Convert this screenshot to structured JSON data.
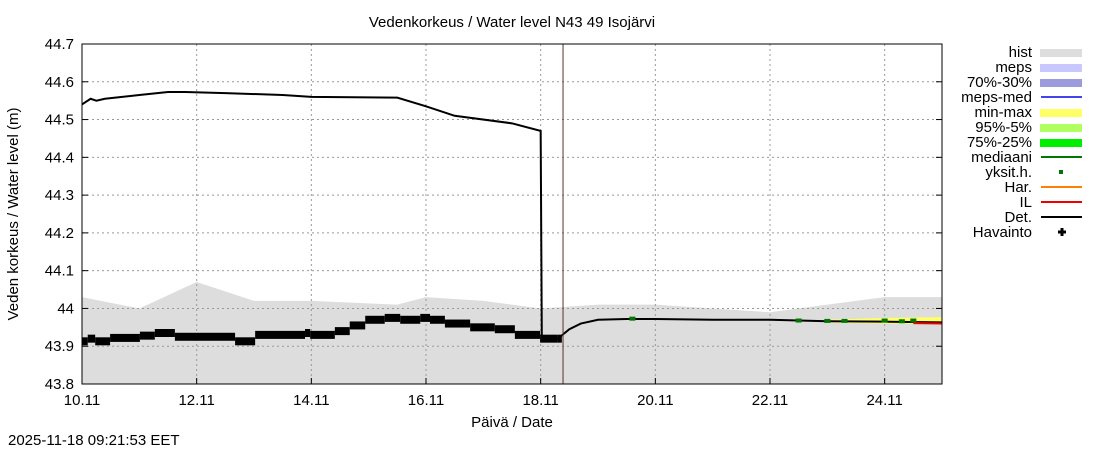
{
  "chart_data": {
    "type": "line",
    "title": "Vedenkorkeus / Water level   N43 49 Isojärvi",
    "xlabel": "Päivä / Date",
    "ylabel": "Veden korkeus / Water level (m)",
    "ylim": [
      43.8,
      44.7
    ],
    "xlim_day_of_november": [
      10,
      25
    ],
    "yticks": [
      "43.8",
      "43.9",
      "44",
      "44.1",
      "44.2",
      "44.3",
      "44.4",
      "44.5",
      "44.6",
      "44.7"
    ],
    "ytick_values": [
      43.8,
      43.9,
      44.0,
      44.1,
      44.2,
      44.3,
      44.4,
      44.5,
      44.6,
      44.7
    ],
    "xticks": [
      "10.11",
      "12.11",
      "14.11",
      "16.11",
      "18.11",
      "20.11",
      "22.11",
      "24.11"
    ],
    "xtick_days": [
      10,
      12,
      14,
      16,
      18,
      20,
      22,
      24
    ],
    "grid": true,
    "forecast_start_day": 18.39,
    "legend": [
      {
        "label": "hist",
        "color": "#dddddd",
        "style": "band"
      },
      {
        "label": "meps",
        "color": "#c8c8ff",
        "style": "band"
      },
      {
        "label": "70%-30%",
        "color": "#9c9cdc",
        "style": "band"
      },
      {
        "label": "meps-med",
        "color": "#4444ee",
        "style": "line"
      },
      {
        "label": "min-max",
        "color": "#ffff66",
        "style": "band"
      },
      {
        "label": "95%-5%",
        "color": "#b0ff60",
        "style": "band"
      },
      {
        "label": "75%-25%",
        "color": "#00ee00",
        "style": "band"
      },
      {
        "label": "mediaani",
        "color": "#007700",
        "style": "line"
      },
      {
        "label": "yksit.h.",
        "color": "#007700",
        "style": "dot"
      },
      {
        "label": "Har.",
        "color": "#ff8000",
        "style": "line"
      },
      {
        "label": "IL",
        "color": "#ee0000",
        "style": "line"
      },
      {
        "label": "Det.",
        "color": "#000000",
        "style": "line"
      },
      {
        "label": "Havainto",
        "color": "#000000",
        "style": "cross"
      }
    ],
    "hist_upper": [
      [
        10,
        44.03
      ],
      [
        11,
        44.0
      ],
      [
        12,
        44.07
      ],
      [
        13,
        44.02
      ],
      [
        14,
        44.02
      ],
      [
        15.5,
        44.01
      ],
      [
        16,
        44.03
      ],
      [
        17,
        44.02
      ],
      [
        18,
        44.0
      ],
      [
        19,
        44.01
      ],
      [
        20,
        44.01
      ],
      [
        21,
        44.0
      ],
      [
        22,
        43.99
      ],
      [
        23,
        44.01
      ],
      [
        24,
        44.03
      ],
      [
        25,
        44.03
      ]
    ],
    "min_max": [
      [
        23,
        43.962,
        43.97
      ],
      [
        24,
        43.96,
        43.975
      ],
      [
        25,
        43.958,
        43.977
      ]
    ],
    "det": [
      [
        10,
        44.54
      ],
      [
        10.15,
        44.555
      ],
      [
        10.25,
        44.55
      ],
      [
        10.4,
        44.555
      ],
      [
        11,
        44.565
      ],
      [
        11.5,
        44.573
      ],
      [
        11.8,
        44.573
      ],
      [
        12.5,
        44.57
      ],
      [
        13.5,
        44.565
      ],
      [
        14,
        44.56
      ],
      [
        15.5,
        44.558
      ],
      [
        16,
        44.535
      ],
      [
        16.5,
        44.51
      ],
      [
        17.5,
        44.49
      ],
      [
        18,
        44.47
      ],
      [
        18.02,
        43.92
      ],
      [
        18.3,
        43.92
      ],
      [
        18.5,
        43.945
      ],
      [
        18.7,
        43.96
      ],
      [
        19,
        43.97
      ],
      [
        19.5,
        43.972
      ],
      [
        20,
        43.972
      ],
      [
        21,
        43.97
      ],
      [
        22,
        43.97
      ],
      [
        23,
        43.966
      ],
      [
        24,
        43.965
      ],
      [
        25,
        43.963
      ]
    ],
    "il": [
      [
        24.5,
        43.961
      ],
      [
        25,
        43.96
      ]
    ],
    "observations": [
      [
        10,
        43.913
      ],
      [
        10.1,
        43.92
      ],
      [
        10.23,
        43.913
      ],
      [
        10.49,
        43.922
      ],
      [
        11.01,
        43.928
      ],
      [
        11.27,
        43.935
      ],
      [
        11.62,
        43.925
      ],
      [
        12.67,
        43.913
      ],
      [
        13.02,
        43.93
      ],
      [
        13.89,
        43.935
      ],
      [
        13.98,
        43.93
      ],
      [
        14.41,
        43.94
      ],
      [
        14.67,
        43.955
      ],
      [
        14.94,
        43.97
      ],
      [
        15.28,
        43.975
      ],
      [
        15.55,
        43.97
      ],
      [
        15.9,
        43.975
      ],
      [
        16.07,
        43.97
      ],
      [
        16.33,
        43.96
      ],
      [
        16.77,
        43.95
      ],
      [
        17.2,
        43.945
      ],
      [
        17.55,
        43.93
      ],
      [
        17.99,
        43.92
      ],
      [
        18.3,
        43.92
      ]
    ],
    "single_members": [
      [
        19.6,
        43.973
      ],
      [
        22.5,
        43.968
      ],
      [
        23.0,
        43.967
      ],
      [
        23.3,
        43.967
      ],
      [
        24.0,
        43.968
      ],
      [
        24.3,
        43.966
      ],
      [
        24.5,
        43.968
      ]
    ],
    "timestamp": "2025-11-18 09:21:53 EET"
  }
}
